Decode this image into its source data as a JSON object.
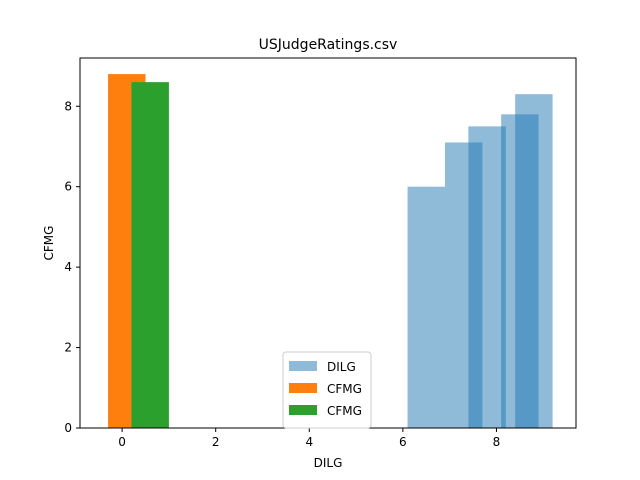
{
  "chart_data": {
    "type": "bar",
    "title": "USJudgeRatings.csv",
    "xlabel": "DILG",
    "ylabel": "CFMG",
    "xlim": [
      -0.9,
      9.7
    ],
    "ylim": [
      0,
      9.2
    ],
    "xticks": [
      0,
      2,
      4,
      6,
      8
    ],
    "yticks": [
      0,
      2,
      4,
      6,
      8
    ],
    "grid": false,
    "legend_position": "lower-center",
    "series": [
      {
        "name": "DILG",
        "color": "#1f77b4",
        "opacity": 0.5,
        "bars": [
          {
            "x": 6.5,
            "width": 0.8,
            "value": 6.0
          },
          {
            "x": 7.3,
            "width": 0.8,
            "value": 7.1
          },
          {
            "x": 7.8,
            "width": 0.8,
            "value": 7.5
          },
          {
            "x": 8.5,
            "width": 0.8,
            "value": 7.8
          },
          {
            "x": 8.8,
            "width": 0.8,
            "value": 8.3
          }
        ]
      },
      {
        "name": "CFMG",
        "color": "#ff7f0e",
        "opacity": 1,
        "bars": [
          {
            "x": 0.1,
            "width": 0.8,
            "value": 8.8
          }
        ]
      },
      {
        "name": "CFMG",
        "color": "#2ca02c",
        "opacity": 1,
        "bars": [
          {
            "x": 0.6,
            "width": 0.8,
            "value": 8.6
          }
        ]
      }
    ]
  }
}
